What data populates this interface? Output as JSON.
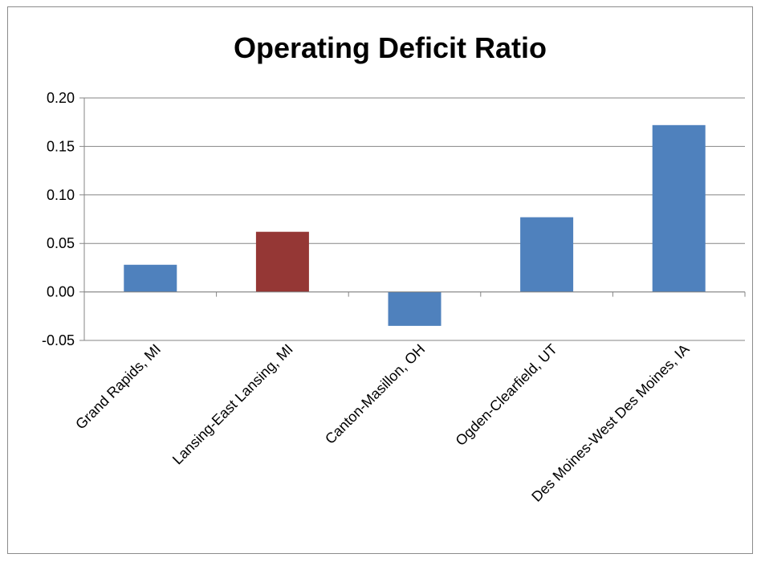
{
  "chart_data": {
    "type": "bar",
    "title": "Operating Deficit Ratio",
    "xlabel": "",
    "ylabel": "",
    "categories": [
      "Grand Rapids, MI",
      "Lansing-East Lansing, MI",
      "Canton-Masillon, OH",
      "Ogden-Clearfield, UT",
      "Des Moines-West Des Moines, IA"
    ],
    "values": [
      0.028,
      0.062,
      -0.035,
      0.077,
      0.172
    ],
    "bar_colors": [
      "#4f81bd",
      "#953735",
      "#4f81bd",
      "#4f81bd",
      "#4f81bd"
    ],
    "ylim": [
      -0.05,
      0.2
    ],
    "yticks": [
      0.2,
      0.15,
      0.1,
      0.05,
      0.0,
      -0.05
    ],
    "ytick_labels": [
      "0.20",
      "0.15",
      "0.10",
      "0.05",
      "0.00",
      "-0.05"
    ],
    "grid": true,
    "legend": false
  }
}
